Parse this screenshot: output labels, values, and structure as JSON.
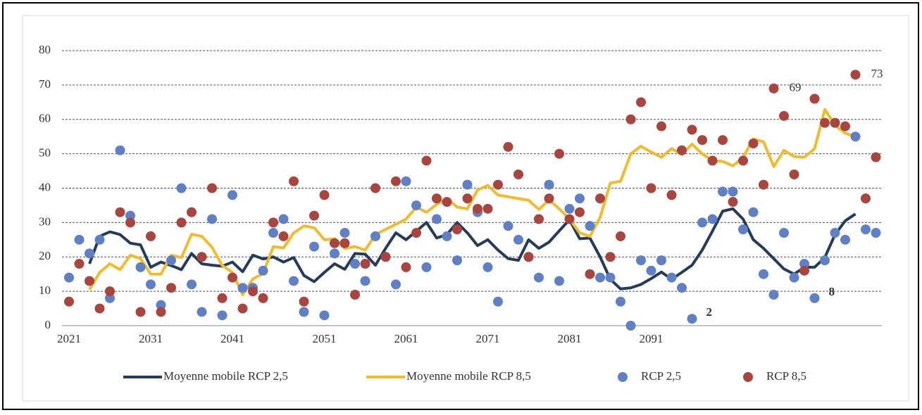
{
  "chart_data": {
    "type": "combo",
    "categories": [
      "2021",
      null,
      null,
      null,
      null,
      null,
      null,
      null,
      "2031",
      null,
      null,
      null,
      null,
      null,
      null,
      null,
      "2041",
      null,
      null,
      null,
      null,
      null,
      null,
      null,
      null,
      "2051",
      null,
      null,
      null,
      null,
      null,
      null,
      null,
      "2061",
      null,
      null,
      null,
      null,
      null,
      null,
      null,
      "2071",
      null,
      null,
      null,
      null,
      null,
      null,
      null,
      "2081",
      null,
      null,
      null,
      null,
      null,
      null,
      null,
      "2091",
      null,
      null,
      null,
      null,
      null,
      null,
      null,
      null,
      null,
      null,
      null,
      null,
      null,
      null,
      null,
      null,
      null,
      null,
      null,
      null,
      null,
      null
    ],
    "ylim": [
      0,
      80
    ],
    "yticks": [
      0,
      10,
      20,
      30,
      40,
      50,
      60,
      70,
      80
    ],
    "grid": true,
    "legend": "bottom",
    "series": [
      {
        "name": "Moyenne mobile RCP 2,5",
        "kind": "line",
        "color": "#253b5c",
        "values": [
          null,
          null,
          18,
          26,
          27.3,
          26.5,
          24,
          23.5,
          17,
          18.5,
          17.5,
          16.3,
          21,
          18,
          17.6,
          17.3,
          18.5,
          15.7,
          20.5,
          19.4,
          20,
          18.5,
          19.8,
          14.6,
          12.8,
          15.5,
          18,
          16.4,
          21,
          20.8,
          17.6,
          22.5,
          27,
          25,
          27.5,
          30,
          25.5,
          26.5,
          30,
          27,
          23.3,
          25,
          22,
          19.5,
          19,
          25,
          22.5,
          24.3,
          27.6,
          30.8,
          25.3,
          25.5,
          20,
          13.5,
          10.7,
          11,
          12,
          13.7,
          15.6,
          13.5,
          15.5,
          17.6,
          22,
          27.5,
          33.3,
          34,
          31,
          25,
          22.5,
          19.5,
          16.5,
          15,
          17,
          17,
          19.8,
          26.5,
          30.5,
          32.5,
          null,
          null
        ]
      },
      {
        "name": "Moyenne mobile RCP 8,5",
        "kind": "line",
        "color": "#f2bb2b",
        "values": [
          null,
          null,
          10.5,
          15.5,
          18,
          16.3,
          20.5,
          19.5,
          15,
          15,
          20.5,
          19.8,
          26.6,
          26,
          22.8,
          17.5,
          15.5,
          9,
          13.6,
          15.2,
          23,
          22.6,
          27,
          29,
          28.5,
          25,
          25.3,
          22.5,
          23,
          22,
          26.5,
          28,
          29.5,
          31,
          34.5,
          33,
          35.3,
          37,
          34.5,
          34,
          39.5,
          40.8,
          38,
          37.5,
          37,
          36.5,
          33.8,
          36.6,
          34,
          31,
          27,
          26,
          31.5,
          41.5,
          42,
          50,
          52.2,
          50.5,
          49,
          51.5,
          49.8,
          52.8,
          50,
          48,
          47.8,
          46.5,
          49,
          54.3,
          53.5,
          46.3,
          51,
          49.2,
          49,
          51.5,
          62.9,
          58.3,
          56,
          55,
          null,
          null
        ]
      },
      {
        "name": "RCP 2,5",
        "kind": "scatter",
        "color": "#5f80c6",
        "labeled": [
          61,
          73
        ],
        "values": [
          14,
          25,
          21,
          25,
          8,
          51,
          32,
          17,
          12,
          6,
          19,
          40,
          12,
          4,
          31,
          3,
          38,
          11,
          11,
          16,
          27,
          31,
          13,
          4,
          23,
          3,
          21,
          27,
          18,
          13,
          26,
          20,
          12,
          42,
          35,
          17,
          31,
          26,
          19,
          41,
          33,
          17,
          7,
          29,
          25,
          20,
          14,
          41,
          13,
          34,
          37,
          29,
          14,
          14,
          7,
          0,
          19,
          16,
          19,
          14,
          11,
          2,
          30,
          31,
          39,
          39,
          28,
          33,
          15,
          9,
          27,
          14,
          18,
          8,
          19,
          27,
          25,
          55,
          28,
          27
        ]
      },
      {
        "name": "RCP 8,5",
        "kind": "scatter",
        "color": "#a9443f",
        "labeled": [
          69,
          77
        ],
        "values": [
          7,
          18,
          13,
          5,
          10,
          33,
          30,
          4,
          26,
          4,
          11,
          30,
          33,
          20,
          40,
          8,
          14,
          5,
          10,
          8,
          30,
          26,
          42,
          7,
          32,
          38,
          24,
          24,
          9,
          18,
          40,
          20,
          42,
          17,
          27,
          48,
          37,
          36,
          28,
          37,
          34,
          34,
          41,
          52,
          44,
          20,
          31,
          37,
          50,
          31,
          33,
          15,
          37,
          20,
          26,
          60,
          65,
          40,
          58,
          38,
          51,
          57,
          54,
          48,
          54,
          36,
          48,
          53,
          41,
          69,
          61,
          44,
          16,
          66,
          59,
          59,
          58,
          73,
          37,
          49
        ]
      }
    ]
  }
}
